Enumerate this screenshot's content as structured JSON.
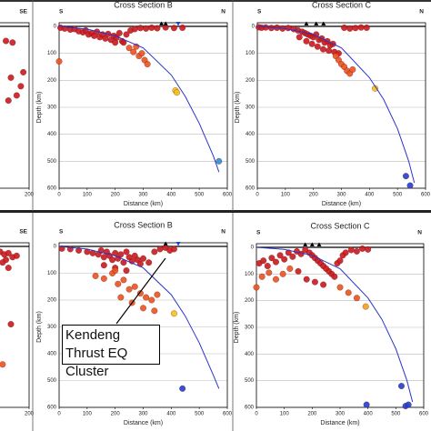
{
  "chart_data": [
    {
      "type": "scatter",
      "right_label": "SE",
      "xlim": [
        0,
        200
      ],
      "ylim": [
        0,
        600
      ],
      "xticks": [
        200
      ],
      "series": [
        {
          "color": "#c8191e",
          "x": [
            172,
            180,
            178,
            190,
            185,
            175,
            193
          ],
          "values": [
            54,
            60,
            190,
            222,
            256,
            275,
            170
          ]
        }
      ]
    },
    {
      "type": "scatter",
      "title": "Cross Section B",
      "left_label": "S",
      "right_label": "N",
      "xlabel": "Distance (km)",
      "ylabel": "Depth (km)",
      "xlim": [
        0,
        600
      ],
      "ylim": [
        0,
        600
      ],
      "xticks": [
        0,
        100,
        200,
        300,
        400,
        500,
        600
      ],
      "yticks": [
        0,
        100,
        200,
        300,
        400,
        500,
        600
      ],
      "grid": true,
      "series": [
        {
          "color": "#c8191e",
          "x": [
            5,
            20,
            40,
            55,
            70,
            85,
            95,
            105,
            115,
            125,
            135,
            145,
            155,
            165,
            175,
            185,
            195,
            205,
            215,
            225,
            240,
            255,
            270,
            290,
            310,
            330,
            350,
            380,
            410,
            440,
            200,
            230
          ],
          "values": [
            5,
            8,
            12,
            10,
            18,
            22,
            15,
            30,
            25,
            35,
            20,
            40,
            30,
            45,
            28,
            50,
            35,
            42,
            25,
            55,
            30,
            15,
            10,
            6,
            8,
            5,
            7,
            4,
            6,
            5,
            60,
            60
          ]
        },
        {
          "color": "#e8531f",
          "x": [
            250,
            265,
            275,
            285,
            295,
            305,
            0,
            315
          ],
          "values": [
            80,
            95,
            75,
            110,
            100,
            125,
            130,
            140
          ]
        },
        {
          "color": "#f2c21a",
          "x": [
            415,
            420
          ],
          "values": [
            238,
            245
          ]
        },
        {
          "color": "#2a8fd0",
          "x": [
            570
          ],
          "values": [
            500
          ]
        },
        {
          "type": "line",
          "color": "#2b35c9",
          "x": [
            0,
            100,
            200,
            300,
            400,
            450,
            500,
            550,
            570
          ],
          "values": [
            0,
            10,
            35,
            80,
            180,
            260,
            360,
            480,
            540
          ]
        },
        {
          "marker": "triangle",
          "color": "#000000",
          "x": [
            365,
            380
          ],
          "values": [
            0,
            0
          ]
        },
        {
          "marker": "inverted-triangle",
          "color": "#1f3fd0",
          "x": [
            425
          ],
          "values": [
            0
          ]
        }
      ]
    },
    {
      "type": "scatter",
      "title": "Cross Section C",
      "left_label": "S",
      "right_label": "N",
      "xlabel": "Distance (km)",
      "ylabel": "Depth (km)",
      "xlim": [
        0,
        600
      ],
      "ylim": [
        0,
        600
      ],
      "xticks": [
        0,
        100,
        200,
        300,
        400,
        500,
        600
      ],
      "yticks": [
        0,
        100,
        200,
        300,
        400,
        500,
        600
      ],
      "grid": true,
      "series": [
        {
          "color": "#c8191e",
          "x": [
            5,
            15,
            30,
            50,
            70,
            90,
            110,
            130,
            145,
            160,
            170,
            180,
            190,
            200,
            210,
            220,
            230,
            240,
            250,
            260,
            270,
            150,
            175,
            195,
            215,
            235,
            255,
            275,
            290,
            310,
            330,
            350,
            370,
            390
          ],
          "values": [
            3,
            5,
            4,
            6,
            5,
            8,
            6,
            10,
            15,
            20,
            25,
            30,
            35,
            40,
            30,
            50,
            45,
            60,
            55,
            70,
            65,
            40,
            55,
            65,
            75,
            85,
            90,
            95,
            100,
            5,
            8,
            6,
            4,
            5
          ]
        },
        {
          "color": "#e8531f",
          "x": [
            280,
            290,
            300,
            310,
            320,
            330,
            340
          ],
          "values": [
            110,
            125,
            140,
            150,
            165,
            175,
            160
          ]
        },
        {
          "color": "#f2c21a",
          "x": [
            420
          ],
          "values": [
            230
          ]
        },
        {
          "color": "#1f3fd0",
          "x": [
            530,
            545
          ],
          "values": [
            555,
            590
          ]
        },
        {
          "type": "line",
          "color": "#2b35c9",
          "x": [
            0,
            100,
            200,
            300,
            400,
            450,
            500,
            540,
            560
          ],
          "values": [
            0,
            8,
            30,
            80,
            190,
            270,
            380,
            500,
            580
          ]
        },
        {
          "marker": "triangle",
          "color": "#000000",
          "x": [
            175,
            210,
            236
          ],
          "values": [
            0,
            0,
            0
          ]
        }
      ]
    },
    {
      "type": "scatter",
      "right_label": "SE",
      "xlim": [
        0,
        200
      ],
      "ylim": [
        0,
        600
      ],
      "xticks": [
        200
      ],
      "series": [
        {
          "color": "#c8191e",
          "x": [
            165,
            170,
            175,
            180,
            185,
            172,
            178,
            168,
            175
          ],
          "values": [
            20,
            30,
            25,
            40,
            35,
            50,
            290,
            60,
            80
          ]
        },
        {
          "color": "#e8531f",
          "x": [
            168
          ],
          "values": [
            440
          ]
        }
      ]
    },
    {
      "type": "scatter",
      "title": "Cross Section B",
      "left_label": "S",
      "right_label": "N",
      "xlabel": "Distance (km)",
      "ylabel": "Depth (km)",
      "xlim": [
        0,
        600
      ],
      "ylim": [
        0,
        600
      ],
      "xticks": [
        0,
        100,
        200,
        300,
        400,
        500,
        600
      ],
      "yticks": [
        0,
        100,
        200,
        300,
        400,
        500,
        600
      ],
      "grid": true,
      "annotation": "Kendeng Thrust EQ Cluster",
      "series": [
        {
          "color": "#c8191e",
          "x": [
            10,
            40,
            70,
            100,
            120,
            140,
            150,
            160,
            170,
            180,
            190,
            200,
            210,
            220,
            230,
            240,
            250,
            260,
            270,
            280,
            290,
            300,
            320,
            340,
            360,
            380,
            395,
            410,
            160,
            200,
            240
          ],
          "values": [
            8,
            10,
            15,
            20,
            25,
            30,
            15,
            40,
            20,
            35,
            50,
            25,
            45,
            30,
            60,
            20,
            40,
            55,
            35,
            50,
            65,
            45,
            60,
            20,
            10,
            5,
            15,
            10,
            70,
            80,
            90
          ]
        },
        {
          "color": "#e8531f",
          "x": [
            130,
            160,
            190,
            210,
            230,
            250,
            270,
            290,
            310,
            330,
            350,
            220,
            260,
            300,
            340,
            200
          ],
          "values": [
            110,
            120,
            100,
            140,
            125,
            160,
            150,
            175,
            190,
            200,
            180,
            190,
            210,
            230,
            240,
            90
          ]
        },
        {
          "color": "#f2c21a",
          "x": [
            410
          ],
          "values": [
            250
          ]
        },
        {
          "color": "#1f3fd0",
          "x": [
            440
          ],
          "values": [
            530
          ]
        },
        {
          "type": "line",
          "color": "#2b35c9",
          "x": [
            0,
            100,
            200,
            300,
            400,
            450,
            500,
            550,
            570
          ],
          "values": [
            0,
            10,
            35,
            80,
            180,
            260,
            360,
            480,
            530
          ]
        },
        {
          "marker": "triangle",
          "color": "#000000",
          "x": [
            380
          ],
          "values": [
            0
          ]
        },
        {
          "marker": "inverted-triangle",
          "color": "#1f3fd0",
          "x": [
            425
          ],
          "values": [
            0
          ]
        }
      ]
    },
    {
      "type": "scatter",
      "title": "Cross Section C",
      "left_label": "S",
      "right_label": "N",
      "xlabel": "Distance (km)",
      "ylabel": "Depth (km)",
      "xlim": [
        0,
        600
      ],
      "ylim": [
        0,
        600
      ],
      "xticks": [
        0,
        100,
        200,
        300,
        400,
        500,
        600
      ],
      "yticks": [
        0,
        100,
        200,
        300,
        400,
        500,
        600
      ],
      "grid": true,
      "series": [
        {
          "color": "#c8191e",
          "x": [
            10,
            25,
            40,
            55,
            70,
            85,
            100,
            115,
            130,
            145,
            160,
            175,
            190,
            200,
            210,
            220,
            230,
            240,
            250,
            260,
            270,
            280,
            290,
            300,
            310,
            320,
            340,
            360,
            380,
            400,
            150,
            180,
            210,
            240
          ],
          "values": [
            60,
            50,
            70,
            40,
            55,
            30,
            45,
            20,
            35,
            15,
            25,
            10,
            20,
            30,
            40,
            50,
            60,
            70,
            80,
            90,
            100,
            110,
            60,
            50,
            30,
            20,
            10,
            15,
            5,
            8,
            90,
            120,
            130,
            140
          ]
        },
        {
          "color": "#e8531f",
          "x": [
            0,
            20,
            45,
            70,
            95,
            120,
            300,
            330,
            360
          ],
          "values": [
            150,
            110,
            95,
            120,
            100,
            80,
            150,
            170,
            190
          ]
        },
        {
          "color": "#f0a020",
          "x": [
            392
          ],
          "values": [
            222
          ]
        },
        {
          "color": "#1f3fd0",
          "x": [
            395,
            520,
            535,
            545
          ],
          "values": [
            590,
            520,
            595,
            590
          ]
        },
        {
          "type": "line",
          "color": "#2b35c9",
          "x": [
            0,
            100,
            200,
            300,
            400,
            450,
            500,
            540,
            560
          ],
          "values": [
            0,
            8,
            30,
            80,
            190,
            270,
            380,
            500,
            580
          ]
        },
        {
          "marker": "triangle",
          "color": "#000000",
          "x": [
            175,
            200,
            225
          ],
          "values": [
            0,
            0,
            0
          ]
        }
      ]
    }
  ]
}
